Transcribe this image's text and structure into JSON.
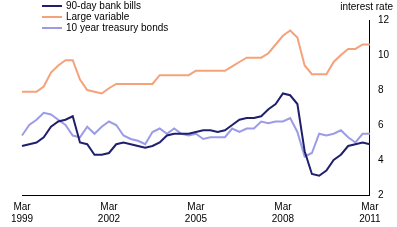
{
  "chart_data": {
    "type": "line",
    "ylabel": "interest rate",
    "categories": [
      "Mar 1999",
      null,
      null,
      null,
      null,
      null,
      null,
      null,
      null,
      null,
      null,
      null,
      "Mar 2002",
      null,
      null,
      null,
      null,
      null,
      null,
      null,
      null,
      null,
      null,
      null,
      "Mar 2005",
      null,
      null,
      null,
      null,
      null,
      null,
      null,
      null,
      null,
      null,
      null,
      "Mar 2008",
      null,
      null,
      null,
      null,
      null,
      null,
      null,
      null,
      null,
      null,
      null,
      "Mar 2011"
    ],
    "series": [
      {
        "name": "90-day bank bills",
        "color": "#1f1f6e",
        "values": [
          4.8,
          4.9,
          5.0,
          5.3,
          5.9,
          6.2,
          6.3,
          6.5,
          5.0,
          4.9,
          4.3,
          4.3,
          4.4,
          4.9,
          5.0,
          4.9,
          4.8,
          4.7,
          4.8,
          5.0,
          5.4,
          5.5,
          5.5,
          5.5,
          5.6,
          5.7,
          5.7,
          5.6,
          5.7,
          6.0,
          6.3,
          6.4,
          6.4,
          6.5,
          6.9,
          7.2,
          7.8,
          7.7,
          7.2,
          4.5,
          3.2,
          3.1,
          3.4,
          4.0,
          4.3,
          4.8,
          4.9,
          5.0,
          4.9
        ]
      },
      {
        "name": "Large variable",
        "color": "#f4a27a",
        "values": [
          7.9,
          7.9,
          7.9,
          8.2,
          9.0,
          9.4,
          9.7,
          9.7,
          8.6,
          8.0,
          7.9,
          7.8,
          8.1,
          8.35,
          8.35,
          8.35,
          8.35,
          8.35,
          8.35,
          8.85,
          8.85,
          8.85,
          8.85,
          8.85,
          9.1,
          9.1,
          9.1,
          9.1,
          9.1,
          9.35,
          9.6,
          9.85,
          9.85,
          9.85,
          10.1,
          10.6,
          11.1,
          11.4,
          11.0,
          9.4,
          8.9,
          8.9,
          8.9,
          9.6,
          10.0,
          10.35,
          10.35,
          10.6,
          10.6
        ]
      },
      {
        "name": "10 year treasury bonds",
        "color": "#9b9be8",
        "values": [
          5.4,
          6.0,
          6.3,
          6.7,
          6.6,
          6.3,
          6.0,
          5.4,
          5.3,
          5.9,
          5.5,
          5.9,
          6.2,
          6.0,
          5.4,
          5.2,
          5.1,
          4.9,
          5.6,
          5.8,
          5.5,
          5.8,
          5.5,
          5.4,
          5.5,
          5.2,
          5.3,
          5.3,
          5.3,
          5.8,
          5.6,
          5.8,
          5.8,
          6.2,
          6.1,
          6.2,
          6.2,
          6.4,
          5.6,
          4.2,
          4.4,
          5.5,
          5.4,
          5.5,
          5.7,
          5.3,
          5.0,
          5.5,
          5.5
        ]
      }
    ],
    "ylim": [
      2,
      12
    ],
    "yticks": [
      2,
      4,
      6,
      8,
      10,
      12
    ],
    "grid": false,
    "legend": "upper left"
  }
}
